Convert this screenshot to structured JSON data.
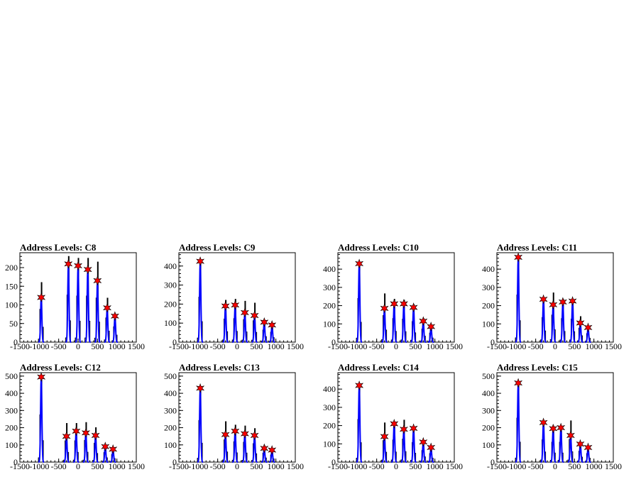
{
  "chart_data": [
    {
      "type": "histogram",
      "title": "Address Levels: C8",
      "xlim": [
        -1500,
        1500
      ],
      "ylim": [
        0,
        240
      ],
      "x_ticks": [
        -1500,
        -1000,
        -500,
        0,
        500,
        1000,
        1500
      ],
      "y_ticks": [
        0,
        50,
        100,
        150,
        200
      ],
      "peaks": [
        {
          "x": -950,
          "y": 120,
          "max": 160
        },
        {
          "x": -250,
          "y": 210,
          "max": 230
        },
        {
          "x": 0,
          "y": 205,
          "max": 225
        },
        {
          "x": 250,
          "y": 195,
          "max": 225
        },
        {
          "x": 500,
          "y": 165,
          "max": 215
        },
        {
          "x": 750,
          "y": 92,
          "max": 118
        },
        {
          "x": 950,
          "y": 70,
          "max": 75
        }
      ],
      "marker_color": "#ff0000",
      "fit_color": "#0000ff"
    },
    {
      "type": "histogram",
      "title": "Address Levels: C9",
      "xlim": [
        -1500,
        1500
      ],
      "ylim": [
        0,
        470
      ],
      "x_ticks": [
        -1500,
        -1000,
        -500,
        0,
        500,
        1000,
        1500
      ],
      "y_ticks": [
        0,
        100,
        200,
        300,
        400
      ],
      "peaks": [
        {
          "x": -950,
          "y": 425,
          "max": 430
        },
        {
          "x": -300,
          "y": 190,
          "max": 220
        },
        {
          "x": -50,
          "y": 195,
          "max": 225
        },
        {
          "x": 200,
          "y": 155,
          "max": 215
        },
        {
          "x": 450,
          "y": 140,
          "max": 205
        },
        {
          "x": 700,
          "y": 105,
          "max": 115
        },
        {
          "x": 900,
          "y": 90,
          "max": 95
        }
      ],
      "marker_color": "#ff0000",
      "fit_color": "#0000ff"
    },
    {
      "type": "histogram",
      "title": "Address Levels: C10",
      "xlim": [
        -1500,
        1500
      ],
      "ylim": [
        0,
        490
      ],
      "x_ticks": [
        -1500,
        -1000,
        -500,
        0,
        500,
        1000,
        1500
      ],
      "y_ticks": [
        0,
        100,
        200,
        300,
        400
      ],
      "peaks": [
        {
          "x": -950,
          "y": 430,
          "max": 435
        },
        {
          "x": -300,
          "y": 185,
          "max": 265
        },
        {
          "x": -50,
          "y": 210,
          "max": 235
        },
        {
          "x": 200,
          "y": 210,
          "max": 230
        },
        {
          "x": 450,
          "y": 190,
          "max": 205
        },
        {
          "x": 700,
          "y": 115,
          "max": 130
        },
        {
          "x": 900,
          "y": 85,
          "max": 90
        }
      ],
      "marker_color": "#ff0000",
      "fit_color": "#0000ff"
    },
    {
      "type": "histogram",
      "title": "Address Levels: C11",
      "xlim": [
        -1500,
        1500
      ],
      "ylim": [
        0,
        490
      ],
      "x_ticks": [
        -1500,
        -1000,
        -500,
        0,
        500,
        1000,
        1500
      ],
      "y_ticks": [
        0,
        100,
        200,
        300,
        400
      ],
      "peaks": [
        {
          "x": -950,
          "y": 465,
          "max": 470
        },
        {
          "x": -300,
          "y": 235,
          "max": 245
        },
        {
          "x": -50,
          "y": 205,
          "max": 270
        },
        {
          "x": 200,
          "y": 220,
          "max": 235
        },
        {
          "x": 450,
          "y": 225,
          "max": 230
        },
        {
          "x": 650,
          "y": 105,
          "max": 140
        },
        {
          "x": 850,
          "y": 80,
          "max": 85
        }
      ],
      "marker_color": "#ff0000",
      "fit_color": "#0000ff"
    },
    {
      "type": "histogram",
      "title": "Address Levels: C12",
      "xlim": [
        -1500,
        1500
      ],
      "ylim": [
        0,
        520
      ],
      "x_ticks": [
        -1500,
        -1000,
        -500,
        0,
        500,
        1000,
        1500
      ],
      "y_ticks": [
        0,
        100,
        200,
        300,
        400,
        500
      ],
      "peaks": [
        {
          "x": -950,
          "y": 495,
          "max": 500
        },
        {
          "x": -300,
          "y": 150,
          "max": 225
        },
        {
          "x": -50,
          "y": 180,
          "max": 225
        },
        {
          "x": 200,
          "y": 170,
          "max": 230
        },
        {
          "x": 450,
          "y": 155,
          "max": 200
        },
        {
          "x": 700,
          "y": 90,
          "max": 100
        },
        {
          "x": 900,
          "y": 75,
          "max": 80
        }
      ],
      "marker_color": "#ff0000",
      "fit_color": "#0000ff"
    },
    {
      "type": "histogram",
      "title": "Address Levels: C13",
      "xlim": [
        -1500,
        1500
      ],
      "ylim": [
        0,
        520
      ],
      "x_ticks": [
        -1500,
        -1000,
        -500,
        0,
        500,
        1000,
        1500
      ],
      "y_ticks": [
        0,
        100,
        200,
        300,
        400,
        500
      ],
      "peaks": [
        {
          "x": -950,
          "y": 430,
          "max": 440
        },
        {
          "x": -300,
          "y": 160,
          "max": 235
        },
        {
          "x": -50,
          "y": 180,
          "max": 215
        },
        {
          "x": 200,
          "y": 165,
          "max": 210
        },
        {
          "x": 450,
          "y": 155,
          "max": 195
        },
        {
          "x": 700,
          "y": 80,
          "max": 95
        },
        {
          "x": 900,
          "y": 70,
          "max": 75
        }
      ],
      "marker_color": "#ff0000",
      "fit_color": "#0000ff"
    },
    {
      "type": "histogram",
      "title": "Address Levels: C14",
      "xlim": [
        -1500,
        1500
      ],
      "ylim": [
        0,
        490
      ],
      "x_ticks": [
        -1500,
        -1000,
        -500,
        0,
        500,
        1000,
        1500
      ],
      "y_ticks": [
        0,
        100,
        200,
        300,
        400
      ],
      "peaks": [
        {
          "x": -950,
          "y": 420,
          "max": 425
        },
        {
          "x": -300,
          "y": 140,
          "max": 215
        },
        {
          "x": -50,
          "y": 210,
          "max": 220
        },
        {
          "x": 200,
          "y": 180,
          "max": 230
        },
        {
          "x": 450,
          "y": 185,
          "max": 195
        },
        {
          "x": 700,
          "y": 110,
          "max": 115
        },
        {
          "x": 900,
          "y": 80,
          "max": 85
        }
      ],
      "marker_color": "#ff0000",
      "fit_color": "#0000ff"
    },
    {
      "type": "histogram",
      "title": "Address Levels: C15",
      "xlim": [
        -1500,
        1500
      ],
      "ylim": [
        0,
        520
      ],
      "x_ticks": [
        -1500,
        -1000,
        -500,
        0,
        500,
        1000,
        1500
      ],
      "y_ticks": [
        0,
        100,
        200,
        300,
        400,
        500
      ],
      "peaks": [
        {
          "x": -950,
          "y": 460,
          "max": 465
        },
        {
          "x": -300,
          "y": 230,
          "max": 235
        },
        {
          "x": -50,
          "y": 195,
          "max": 210
        },
        {
          "x": 150,
          "y": 200,
          "max": 210
        },
        {
          "x": 400,
          "y": 155,
          "max": 240
        },
        {
          "x": 650,
          "y": 105,
          "max": 115
        },
        {
          "x": 850,
          "y": 85,
          "max": 90
        }
      ],
      "marker_color": "#ff0000",
      "fit_color": "#0000ff"
    }
  ]
}
